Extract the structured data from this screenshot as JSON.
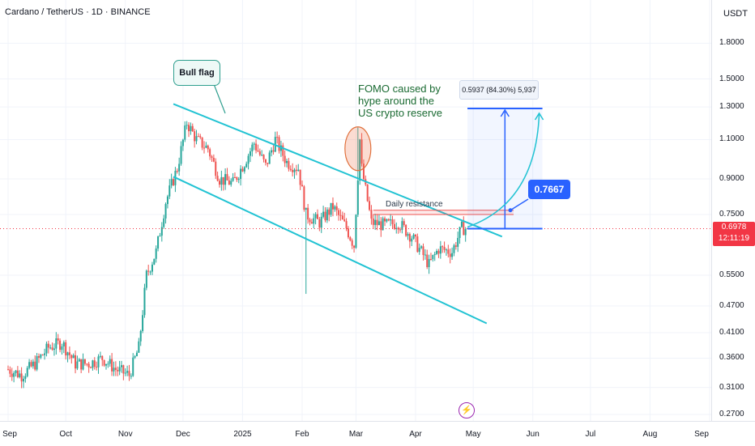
{
  "title": "Cardano / TetherUS · 1D · BINANCE",
  "currency": "USDT",
  "current_price": {
    "value": "0.6978",
    "countdown": "12:11:19"
  },
  "annotations": {
    "bull_flag": "Bull flag",
    "fomo": [
      "FOMO caused by",
      "hype around the",
      "US crypto reserve"
    ],
    "daily_resistance": "Daily resistance",
    "measure": "0.5937 (84.30%) 5,937",
    "target": "0.7667"
  },
  "colors": {
    "up": "#26a69a",
    "down": "#ef5350",
    "channel": "#22c3d3",
    "accent": "#2962ff",
    "price_line": "#f23645"
  },
  "chart_data": {
    "type": "candlestick",
    "title": "Cardano / TetherUS · 1D · BINANCE",
    "y_scale": "log",
    "ylim": [
      0.27,
      2.05
    ],
    "y_ticks": [
      "1.8000",
      "1.5000",
      "1.3000",
      "1.1000",
      "0.9000",
      "0.7500",
      "0.6978",
      "0.5500",
      "0.4700",
      "0.4100",
      "0.3600",
      "0.3100",
      "0.2700"
    ],
    "x_ticks": [
      "Sep",
      "Oct",
      "Nov",
      "Dec",
      "2025",
      "Feb",
      "Mar",
      "Apr",
      "May",
      "Jun",
      "Jul",
      "Aug",
      "Sep"
    ],
    "price_path": [
      [
        "2024-09-01",
        0.34
      ],
      [
        "2024-09-08",
        0.33
      ],
      [
        "2024-09-15",
        0.35
      ],
      [
        "2024-09-22",
        0.38
      ],
      [
        "2024-09-29",
        0.39
      ],
      [
        "2024-10-06",
        0.35
      ],
      [
        "2024-10-13",
        0.35
      ],
      [
        "2024-10-20",
        0.36
      ],
      [
        "2024-10-27",
        0.34
      ],
      [
        "2024-11-03",
        0.33
      ],
      [
        "2024-11-08",
        0.38
      ],
      [
        "2024-11-12",
        0.55
      ],
      [
        "2024-11-17",
        0.62
      ],
      [
        "2024-11-22",
        0.8
      ],
      [
        "2024-11-28",
        0.95
      ],
      [
        "2024-12-03",
        1.2
      ],
      [
        "2024-12-08",
        1.1
      ],
      [
        "2024-12-14",
        1.05
      ],
      [
        "2024-12-20",
        0.9
      ],
      [
        "2024-12-27",
        0.88
      ],
      [
        "2025-01-02",
        0.98
      ],
      [
        "2025-01-07",
        1.08
      ],
      [
        "2025-01-13",
        0.96
      ],
      [
        "2025-01-18",
        1.1
      ],
      [
        "2025-01-24",
        0.98
      ],
      [
        "2025-01-30",
        0.95
      ],
      [
        "2025-02-03",
        0.75
      ],
      [
        "2025-02-10",
        0.72
      ],
      [
        "2025-02-17",
        0.78
      ],
      [
        "2025-02-24",
        0.7
      ],
      [
        "2025-02-28",
        0.64
      ],
      [
        "2025-03-03",
        1.1
      ],
      [
        "2025-03-04",
        0.95
      ],
      [
        "2025-03-09",
        0.72
      ],
      [
        "2025-03-16",
        0.71
      ],
      [
        "2025-03-23",
        0.72
      ],
      [
        "2025-03-30",
        0.67
      ],
      [
        "2025-04-06",
        0.6
      ],
      [
        "2025-04-08",
        0.58
      ],
      [
        "2025-04-13",
        0.63
      ],
      [
        "2025-04-20",
        0.62
      ],
      [
        "2025-04-25",
        0.7
      ],
      [
        "2025-04-27",
        0.6978
      ]
    ],
    "channel": [
      {
        "name": "upper",
        "from": [
          "2024-11-26",
          1.32
        ],
        "to": [
          "2025-05-16",
          0.67
        ]
      },
      {
        "name": "lower",
        "from": [
          "2024-11-26",
          0.91
        ],
        "to": [
          "2025-05-08",
          0.43
        ]
      }
    ],
    "resistance": [
      0.7667,
      0.75
    ],
    "measured_move": {
      "from": 0.6978,
      "to": 1.29,
      "change": "0.5937 (84.30%) 5,937"
    },
    "target": 0.7667,
    "grid": true
  }
}
